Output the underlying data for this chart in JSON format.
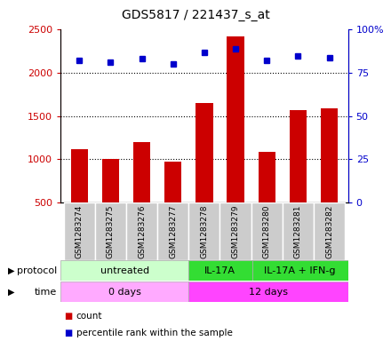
{
  "title": "GDS5817 / 221437_s_at",
  "samples": [
    "GSM1283274",
    "GSM1283275",
    "GSM1283276",
    "GSM1283277",
    "GSM1283278",
    "GSM1283279",
    "GSM1283280",
    "GSM1283281",
    "GSM1283282"
  ],
  "counts": [
    1120,
    1005,
    1200,
    970,
    1650,
    2420,
    1090,
    1570,
    1590
  ],
  "percentile_ranks": [
    82,
    81,
    83,
    80,
    87,
    89,
    82,
    85,
    84
  ],
  "ylim_left": [
    500,
    2500
  ],
  "ylim_right": [
    0,
    100
  ],
  "yticks_left": [
    500,
    1000,
    1500,
    2000,
    2500
  ],
  "yticks_right": [
    0,
    25,
    50,
    75,
    100
  ],
  "yticklabels_right": [
    "0",
    "25",
    "50",
    "75",
    "100%"
  ],
  "bar_color": "#cc0000",
  "dot_color": "#0000cc",
  "protocol_groups": [
    {
      "label": "untreated",
      "start": 0,
      "end": 4,
      "color": "#ccffcc"
    },
    {
      "label": "IL-17A",
      "start": 4,
      "end": 6,
      "color": "#33dd33"
    },
    {
      "label": "IL-17A + IFN-g",
      "start": 6,
      "end": 9,
      "color": "#33dd33"
    }
  ],
  "time_groups": [
    {
      "label": "0 days",
      "start": 0,
      "end": 4,
      "color": "#ffaaff"
    },
    {
      "label": "12 days",
      "start": 4,
      "end": 9,
      "color": "#ff44ff"
    }
  ],
  "legend_items": [
    {
      "color": "#cc0000",
      "label": "count"
    },
    {
      "color": "#0000cc",
      "label": "percentile rank within the sample"
    }
  ],
  "protocol_label": "protocol",
  "time_label": "time",
  "background_color": "#ffffff",
  "plot_bg": "#ffffff",
  "sample_box_color": "#cccccc",
  "grid_color": "#000000",
  "bar_bottom": 500,
  "fig_width": 4.4,
  "fig_height": 3.93,
  "dpi": 100
}
